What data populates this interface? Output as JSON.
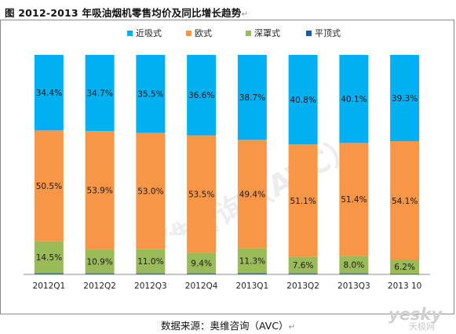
{
  "figure": {
    "title": "图 2012-2013 年吸油烟机零售均价及同比增长趋势",
    "title_mark": "↵",
    "source": "数据来源：奥维咨询（AVC）",
    "source_mark": "↵",
    "watermark": "奥维咨询（AVC）",
    "logo_main": "yesky",
    "logo_sub": "天极网"
  },
  "colors": {
    "近吸式": "#00b0f0",
    "欧式": "#f79646",
    "深罩式": "#9bbb59",
    "平顶式": "#1f5aa0"
  },
  "chart_data": {
    "type": "bar",
    "stacked": true,
    "percent_stacked": true,
    "categories": [
      "2012Q1",
      "2012Q2",
      "2012Q3",
      "2012Q4",
      "2013Q1",
      "2013Q2",
      "2013Q3",
      "2013 10"
    ],
    "series": [
      {
        "name": "平顶式",
        "values": [
          0.6,
          0.5,
          0.5,
          0.5,
          0.6,
          0.5,
          0.5,
          0.4
        ],
        "show_labels": false
      },
      {
        "name": "深罩式",
        "values": [
          14.5,
          10.9,
          11.0,
          9.4,
          11.3,
          7.6,
          8.0,
          6.2
        ],
        "labels": [
          "14.5%",
          "10.9%",
          "11.0%",
          "9.4%",
          "11.3%",
          "7.6%",
          "8.0%",
          "6.2%"
        ]
      },
      {
        "name": "欧式",
        "values": [
          50.5,
          53.9,
          53.0,
          53.5,
          49.4,
          51.1,
          51.4,
          54.1
        ],
        "labels": [
          "50.5%",
          "53.9%",
          "53.0%",
          "53.5%",
          "49.4%",
          "51.1%",
          "51.4%",
          "54.1%"
        ]
      },
      {
        "name": "近吸式",
        "values": [
          34.4,
          34.7,
          35.5,
          36.6,
          38.7,
          40.8,
          40.1,
          39.3
        ],
        "labels": [
          "34.4%",
          "34.7%",
          "35.5%",
          "36.6%",
          "38.7%",
          "40.8%",
          "40.1%",
          "39.3%"
        ]
      }
    ],
    "legend": [
      "近吸式",
      "欧式",
      "深罩式",
      "平顶式"
    ],
    "legend_position": "top",
    "ylim": [
      0,
      100
    ],
    "grid": false
  }
}
